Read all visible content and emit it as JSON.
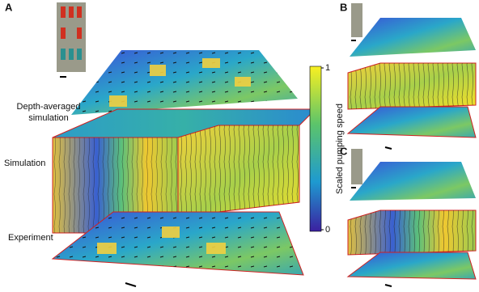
{
  "panels": [
    "A",
    "B",
    "C"
  ],
  "row_labels": {
    "depth_averaged": [
      "Depth-averaged",
      "simulation"
    ],
    "simulation": "Simulation",
    "experiment": "Experiment"
  },
  "colorbar": {
    "label": "Scaled pumping speed",
    "ticks": [
      0,
      1
    ]
  }
}
